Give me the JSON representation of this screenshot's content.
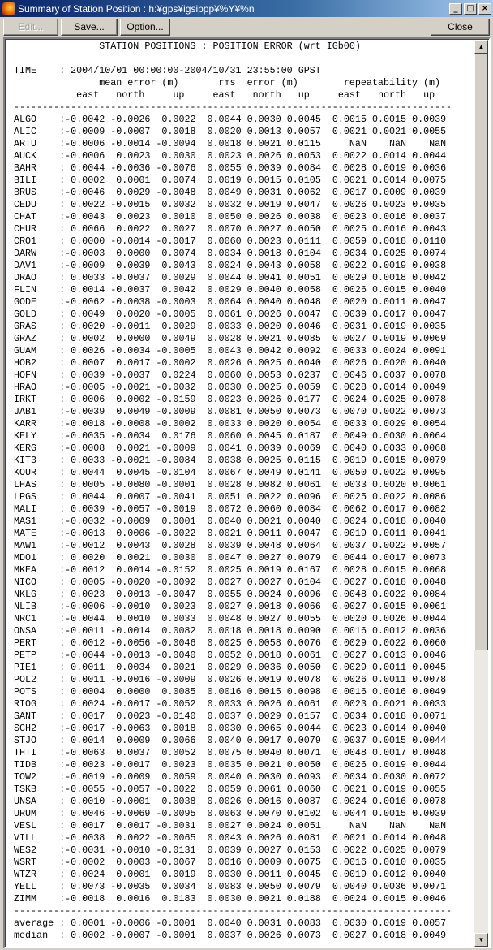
{
  "window": {
    "title": "Summary of Station Position : h:¥gps¥igsippp¥%Y¥%n",
    "minimize": "_",
    "maximize": "□",
    "close": "×"
  },
  "toolbar": {
    "edit_label": "Edit...",
    "save_label": "Save...",
    "option_label": "Option...",
    "close_label": "Close"
  },
  "report": {
    "title": "STATION POSITIONS : POSITION ERROR (wrt IGb00)",
    "time_label": "TIME",
    "time_value": "2004/10/01 00:00:00-2004/10/31 23:55:00 GPST",
    "group_headers": [
      "mean error (m)",
      "rms  error (m)",
      "repeatability (m)"
    ],
    "column_headers": [
      "east",
      "north",
      "up",
      "east",
      "north",
      "up",
      "east",
      "north",
      "up"
    ],
    "rows": [
      [
        "ALGO",
        "-0.0042",
        "-0.0026",
        "0.0022",
        "0.0044",
        "0.0030",
        "0.0045",
        "0.0015",
        "0.0015",
        "0.0039"
      ],
      [
        "ALIC",
        "-0.0009",
        "-0.0007",
        "0.0018",
        "0.0020",
        "0.0013",
        "0.0057",
        "0.0021",
        "0.0021",
        "0.0055"
      ],
      [
        "ARTU",
        "-0.0006",
        "-0.0014",
        "-0.0094",
        "0.0018",
        "0.0021",
        "0.0115",
        "NaN",
        "NaN",
        "NaN"
      ],
      [
        "AUCK",
        "-0.0006",
        "0.0023",
        "0.0030",
        "0.0023",
        "0.0026",
        "0.0053",
        "0.0022",
        "0.0014",
        "0.0044"
      ],
      [
        "BAHR",
        "0.0044",
        "-0.0036",
        "-0.0076",
        "0.0055",
        "0.0039",
        "0.0084",
        "0.0028",
        "0.0019",
        "0.0036"
      ],
      [
        "BILI",
        "0.0002",
        "0.0001",
        "0.0074",
        "0.0019",
        "0.0015",
        "0.0105",
        "0.0021",
        "0.0014",
        "0.0075"
      ],
      [
        "BRUS",
        "-0.0046",
        "0.0029",
        "-0.0048",
        "0.0049",
        "0.0031",
        "0.0062",
        "0.0017",
        "0.0009",
        "0.0039"
      ],
      [
        "CEDU",
        "0.0022",
        "-0.0015",
        "0.0032",
        "0.0032",
        "0.0019",
        "0.0047",
        "0.0026",
        "0.0023",
        "0.0035"
      ],
      [
        "CHAT",
        "-0.0043",
        "0.0023",
        "0.0010",
        "0.0050",
        "0.0026",
        "0.0038",
        "0.0023",
        "0.0016",
        "0.0037"
      ],
      [
        "CHUR",
        "0.0066",
        "0.0022",
        "0.0027",
        "0.0070",
        "0.0027",
        "0.0050",
        "0.0025",
        "0.0016",
        "0.0043"
      ],
      [
        "CRO1",
        "0.0000",
        "-0.0014",
        "-0.0017",
        "0.0060",
        "0.0023",
        "0.0111",
        "0.0059",
        "0.0018",
        "0.0110"
      ],
      [
        "DARW",
        "-0.0003",
        "0.0000",
        "0.0074",
        "0.0034",
        "0.0018",
        "0.0104",
        "0.0034",
        "0.0025",
        "0.0074"
      ],
      [
        "DAV1",
        "-0.0009",
        "0.0039",
        "0.0043",
        "0.0024",
        "0.0043",
        "0.0058",
        "0.0022",
        "0.0019",
        "0.0038"
      ],
      [
        "DRAO",
        "0.0033",
        "-0.0037",
        "0.0029",
        "0.0044",
        "0.0041",
        "0.0051",
        "0.0029",
        "0.0018",
        "0.0042"
      ],
      [
        "FLIN",
        "0.0014",
        "-0.0037",
        "0.0042",
        "0.0029",
        "0.0040",
        "0.0058",
        "0.0026",
        "0.0015",
        "0.0040"
      ],
      [
        "GODE",
        "-0.0062",
        "-0.0038",
        "-0.0003",
        "0.0064",
        "0.0040",
        "0.0048",
        "0.0020",
        "0.0011",
        "0.0047"
      ],
      [
        "GOLD",
        "0.0049",
        "0.0020",
        "-0.0005",
        "0.0061",
        "0.0026",
        "0.0047",
        "0.0039",
        "0.0017",
        "0.0047"
      ],
      [
        "GRAS",
        "0.0020",
        "-0.0011",
        "0.0029",
        "0.0033",
        "0.0020",
        "0.0046",
        "0.0031",
        "0.0019",
        "0.0035"
      ],
      [
        "GRAZ",
        "0.0002",
        "0.0000",
        "0.0049",
        "0.0028",
        "0.0021",
        "0.0085",
        "0.0027",
        "0.0019",
        "0.0069"
      ],
      [
        "GUAM",
        "0.0026",
        "-0.0034",
        "-0.0005",
        "0.0043",
        "0.0042",
        "0.0092",
        "0.0033",
        "0.0024",
        "0.0091"
      ],
      [
        "HOB2",
        "0.0007",
        "0.0017",
        "-0.0002",
        "0.0026",
        "0.0025",
        "0.0040",
        "0.0026",
        "0.0020",
        "0.0040"
      ],
      [
        "HOFN",
        "0.0039",
        "-0.0037",
        "0.0224",
        "0.0060",
        "0.0053",
        "0.0237",
        "0.0046",
        "0.0037",
        "0.0078"
      ],
      [
        "HRAO",
        "-0.0005",
        "-0.0021",
        "-0.0032",
        "0.0030",
        "0.0025",
        "0.0059",
        "0.0028",
        "0.0014",
        "0.0049"
      ],
      [
        "IRKT",
        "0.0006",
        "0.0002",
        "-0.0159",
        "0.0023",
        "0.0026",
        "0.0177",
        "0.0024",
        "0.0025",
        "0.0078"
      ],
      [
        "JAB1",
        "-0.0039",
        "0.0049",
        "-0.0009",
        "0.0081",
        "0.0050",
        "0.0073",
        "0.0070",
        "0.0022",
        "0.0073"
      ],
      [
        "KARR",
        "-0.0018",
        "-0.0008",
        "-0.0002",
        "0.0033",
        "0.0020",
        "0.0054",
        "0.0033",
        "0.0029",
        "0.0054"
      ],
      [
        "KELY",
        "-0.0035",
        "-0.0034",
        "0.0176",
        "0.0060",
        "0.0045",
        "0.0187",
        "0.0049",
        "0.0030",
        "0.0064"
      ],
      [
        "KERG",
        "-0.0008",
        "0.0021",
        "-0.0009",
        "0.0041",
        "0.0039",
        "0.0069",
        "0.0040",
        "0.0033",
        "0.0068"
      ],
      [
        "KIT3",
        "0.0033",
        "-0.0021",
        "-0.0084",
        "0.0038",
        "0.0025",
        "0.0115",
        "0.0019",
        "0.0015",
        "0.0079"
      ],
      [
        "KOUR",
        "0.0044",
        "0.0045",
        "-0.0104",
        "0.0067",
        "0.0049",
        "0.0141",
        "0.0050",
        "0.0022",
        "0.0095"
      ],
      [
        "LHAS",
        "0.0005",
        "-0.0080",
        "-0.0001",
        "0.0028",
        "0.0082",
        "0.0061",
        "0.0033",
        "0.0020",
        "0.0061"
      ],
      [
        "LPGS",
        "0.0044",
        "0.0007",
        "-0.0041",
        "0.0051",
        "0.0022",
        "0.0096",
        "0.0025",
        "0.0022",
        "0.0086"
      ],
      [
        "MALI",
        "0.0039",
        "-0.0057",
        "-0.0019",
        "0.0072",
        "0.0060",
        "0.0084",
        "0.0062",
        "0.0017",
        "0.0082"
      ],
      [
        "MAS1",
        "-0.0032",
        "-0.0009",
        "0.0001",
        "0.0040",
        "0.0021",
        "0.0040",
        "0.0024",
        "0.0018",
        "0.0040"
      ],
      [
        "MATE",
        "-0.0013",
        "0.0006",
        "-0.0022",
        "0.0021",
        "0.0011",
        "0.0047",
        "0.0019",
        "0.0011",
        "0.0041"
      ],
      [
        "MAW1",
        "-0.0012",
        "0.0043",
        "0.0028",
        "0.0039",
        "0.0048",
        "0.0064",
        "0.0037",
        "0.0022",
        "0.0057"
      ],
      [
        "MDO1",
        "0.0020",
        "0.0021",
        "0.0030",
        "0.0047",
        "0.0027",
        "0.0079",
        "0.0044",
        "0.0017",
        "0.0073"
      ],
      [
        "MKEA",
        "-0.0012",
        "0.0014",
        "-0.0152",
        "0.0025",
        "0.0019",
        "0.0167",
        "0.0028",
        "0.0015",
        "0.0068"
      ],
      [
        "NICO",
        "0.0005",
        "-0.0020",
        "-0.0092",
        "0.0027",
        "0.0027",
        "0.0104",
        "0.0027",
        "0.0018",
        "0.0048"
      ],
      [
        "NKLG",
        "0.0023",
        "0.0013",
        "-0.0047",
        "0.0055",
        "0.0024",
        "0.0096",
        "0.0048",
        "0.0022",
        "0.0084"
      ],
      [
        "NLIB",
        "-0.0006",
        "-0.0010",
        "0.0023",
        "0.0027",
        "0.0018",
        "0.0066",
        "0.0027",
        "0.0015",
        "0.0061"
      ],
      [
        "NRC1",
        "-0.0044",
        "0.0010",
        "0.0033",
        "0.0048",
        "0.0027",
        "0.0055",
        "0.0020",
        "0.0026",
        "0.0044"
      ],
      [
        "ONSA",
        "-0.0011",
        "-0.0014",
        "0.0082",
        "0.0018",
        "0.0018",
        "0.0090",
        "0.0016",
        "0.0012",
        "0.0036"
      ],
      [
        "PERT",
        "0.0012",
        "-0.0056",
        "-0.0046",
        "0.0025",
        "0.0058",
        "0.0076",
        "0.0029",
        "0.0022",
        "0.0060"
      ],
      [
        "PETP",
        "-0.0044",
        "-0.0013",
        "-0.0040",
        "0.0052",
        "0.0018",
        "0.0061",
        "0.0027",
        "0.0013",
        "0.0046"
      ],
      [
        "PIE1",
        "0.0011",
        "0.0034",
        "0.0021",
        "0.0029",
        "0.0036",
        "0.0050",
        "0.0029",
        "0.0011",
        "0.0045"
      ],
      [
        "POL2",
        "0.0011",
        "-0.0016",
        "-0.0009",
        "0.0026",
        "0.0019",
        "0.0078",
        "0.0026",
        "0.0011",
        "0.0078"
      ],
      [
        "POTS",
        "0.0004",
        "0.0000",
        "0.0085",
        "0.0016",
        "0.0015",
        "0.0098",
        "0.0016",
        "0.0016",
        "0.0049"
      ],
      [
        "RIOG",
        "0.0024",
        "-0.0017",
        "-0.0052",
        "0.0033",
        "0.0026",
        "0.0061",
        "0.0023",
        "0.0021",
        "0.0033"
      ],
      [
        "SANT",
        "0.0017",
        "0.0023",
        "-0.0140",
        "0.0037",
        "0.0029",
        "0.0157",
        "0.0034",
        "0.0018",
        "0.0071"
      ],
      [
        "SCH2",
        "-0.0017",
        "-0.0063",
        "0.0018",
        "0.0030",
        "0.0065",
        "0.0044",
        "0.0023",
        "0.0014",
        "0.0040"
      ],
      [
        "STJO",
        "0.0014",
        "0.0009",
        "0.0066",
        "0.0040",
        "0.0017",
        "0.0079",
        "0.0037",
        "0.0015",
        "0.0044"
      ],
      [
        "THTI",
        "-0.0063",
        "0.0037",
        "0.0052",
        "0.0075",
        "0.0040",
        "0.0071",
        "0.0048",
        "0.0017",
        "0.0048"
      ],
      [
        "TIDB",
        "-0.0023",
        "-0.0017",
        "0.0023",
        "0.0035",
        "0.0021",
        "0.0050",
        "0.0026",
        "0.0019",
        "0.0044"
      ],
      [
        "TOW2",
        "-0.0019",
        "-0.0009",
        "0.0059",
        "0.0040",
        "0.0030",
        "0.0093",
        "0.0034",
        "0.0030",
        "0.0072"
      ],
      [
        "TSKB",
        "-0.0055",
        "-0.0057",
        "-0.0022",
        "0.0059",
        "0.0061",
        "0.0060",
        "0.0021",
        "0.0019",
        "0.0055"
      ],
      [
        "UNSA",
        "0.0010",
        "-0.0001",
        "0.0038",
        "0.0026",
        "0.0016",
        "0.0087",
        "0.0024",
        "0.0016",
        "0.0078"
      ],
      [
        "URUM",
        "0.0046",
        "-0.0069",
        "-0.0095",
        "0.0063",
        "0.0070",
        "0.0102",
        "0.0044",
        "0.0015",
        "0.0039"
      ],
      [
        "VESL",
        "0.0017",
        "0.0017",
        "-0.0031",
        "0.0027",
        "0.0024",
        "0.0051",
        "NaN",
        "NaN",
        "NaN"
      ],
      [
        "VILL",
        "-0.0038",
        "0.0022",
        "-0.0065",
        "0.0043",
        "0.0026",
        "0.0081",
        "0.0021",
        "0.0014",
        "0.0048"
      ],
      [
        "WES2",
        "-0.0031",
        "-0.0010",
        "-0.0131",
        "0.0039",
        "0.0027",
        "0.0153",
        "0.0022",
        "0.0025",
        "0.0079"
      ],
      [
        "WSRT",
        "-0.0002",
        "0.0003",
        "-0.0067",
        "0.0016",
        "0.0009",
        "0.0075",
        "0.0016",
        "0.0010",
        "0.0035"
      ],
      [
        "WTZR",
        "0.0024",
        "0.0001",
        "0.0019",
        "0.0030",
        "0.0011",
        "0.0045",
        "0.0019",
        "0.0012",
        "0.0040"
      ],
      [
        "YELL",
        "0.0073",
        "-0.0035",
        "0.0034",
        "0.0083",
        "0.0050",
        "0.0079",
        "0.0040",
        "0.0036",
        "0.0071"
      ],
      [
        "ZIMM",
        "-0.0018",
        "0.0016",
        "0.0183",
        "0.0030",
        "0.0021",
        "0.0188",
        "0.0024",
        "0.0015",
        "0.0046"
      ]
    ],
    "summary": [
      [
        "average",
        "0.0001",
        "-0.0006",
        "-0.0001",
        "0.0040",
        "0.0031",
        "0.0083",
        "0.0030",
        "0.0019",
        "0.0057"
      ],
      [
        "median",
        "0.0002",
        "-0.0007",
        "-0.0001",
        "0.0037",
        "0.0026",
        "0.0073",
        "0.0027",
        "0.0018",
        "0.0049"
      ]
    ]
  }
}
